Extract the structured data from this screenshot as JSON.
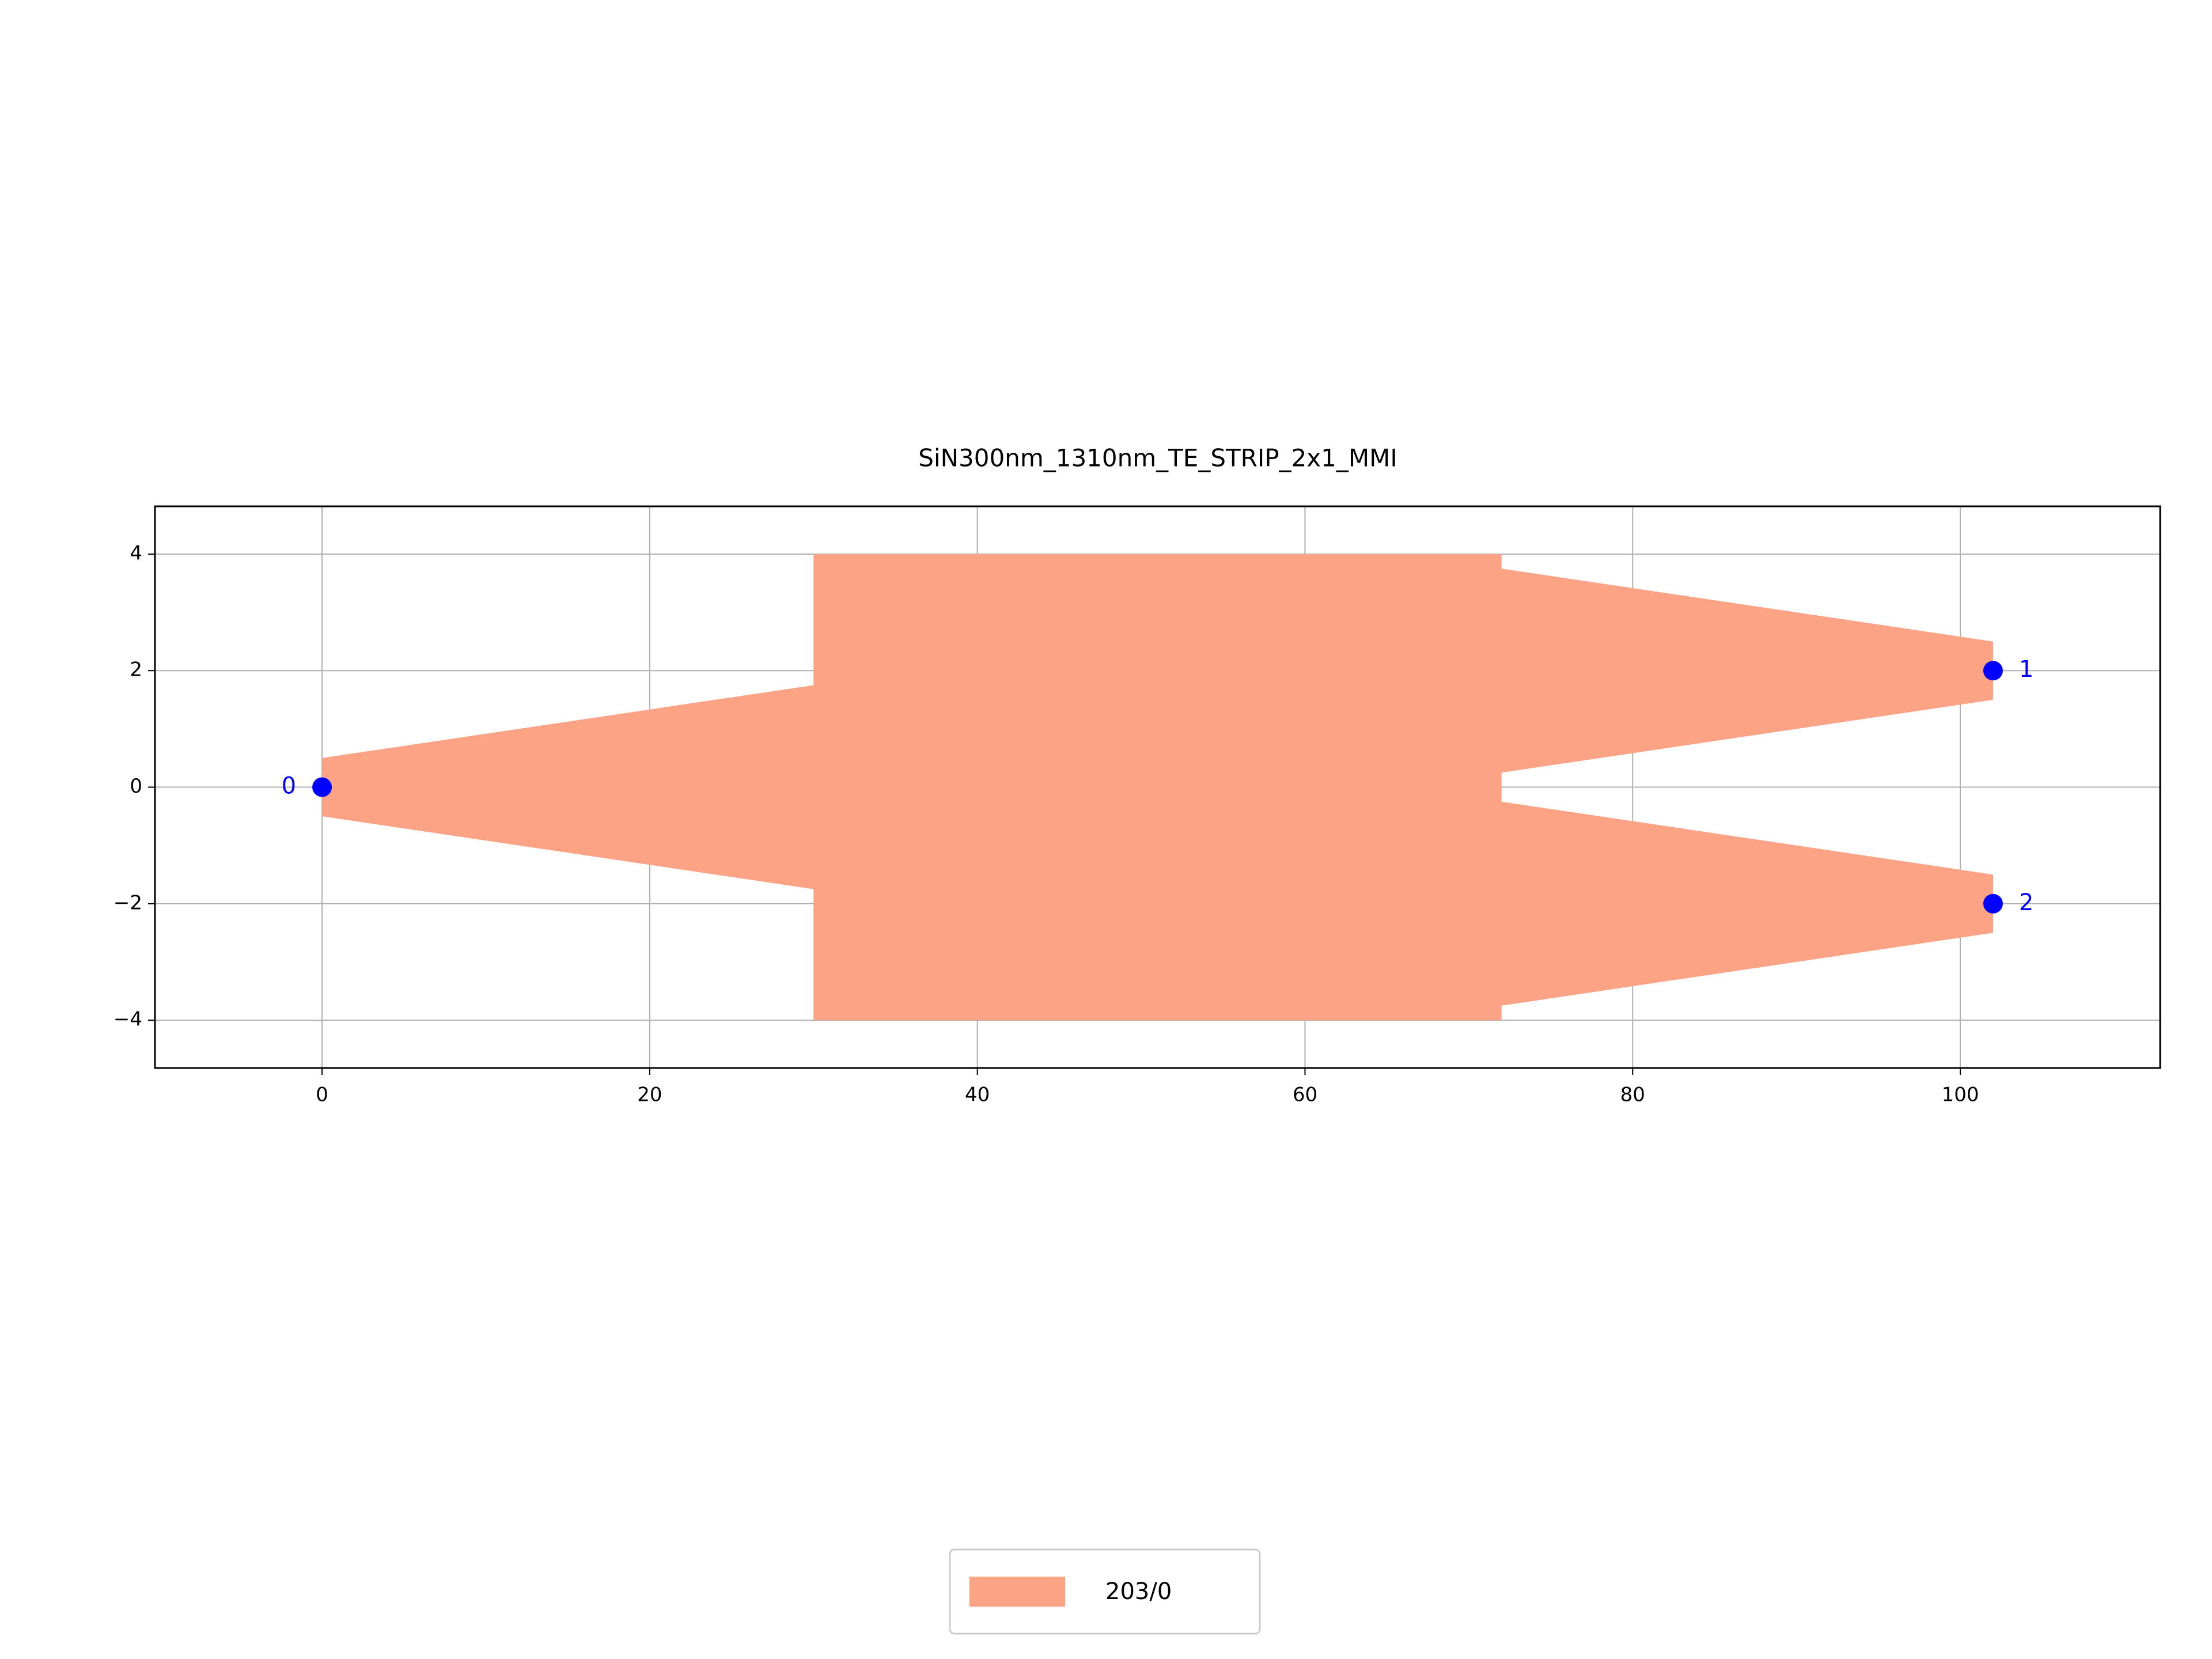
{
  "chart_data": {
    "type": "polygon",
    "title": "SiN300nm_1310nm_TE_STRIP_2x1_MMI",
    "series": [
      {
        "name": "203/0",
        "color": "#fca385",
        "x": [
          0,
          30,
          30,
          72,
          72,
          102,
          102,
          72,
          72,
          102,
          102,
          72,
          72,
          30,
          30,
          0
        ],
        "y": [
          0.5,
          1.75,
          4,
          4,
          3.75,
          2.5,
          1.5,
          0.25,
          -0.25,
          -1.5,
          -2.5,
          -3.75,
          -4,
          -4,
          -1.75,
          -0.5
        ]
      }
    ],
    "ports": {
      "labels": [
        "0",
        "1",
        "2"
      ],
      "x": [
        0,
        102,
        102
      ],
      "y": [
        0,
        2,
        -2
      ],
      "color": "#0000ff"
    },
    "xlim": [
      -10.2,
      112.2
    ],
    "ylim": [
      -4.82,
      4.82
    ],
    "xticks": [
      0,
      20,
      40,
      60,
      80,
      100
    ],
    "yticks": [
      {
        "value": -4,
        "label": "−4"
      },
      {
        "value": -2,
        "label": "−2"
      },
      0,
      2,
      4
    ],
    "grid": true,
    "legend": "lower center"
  }
}
